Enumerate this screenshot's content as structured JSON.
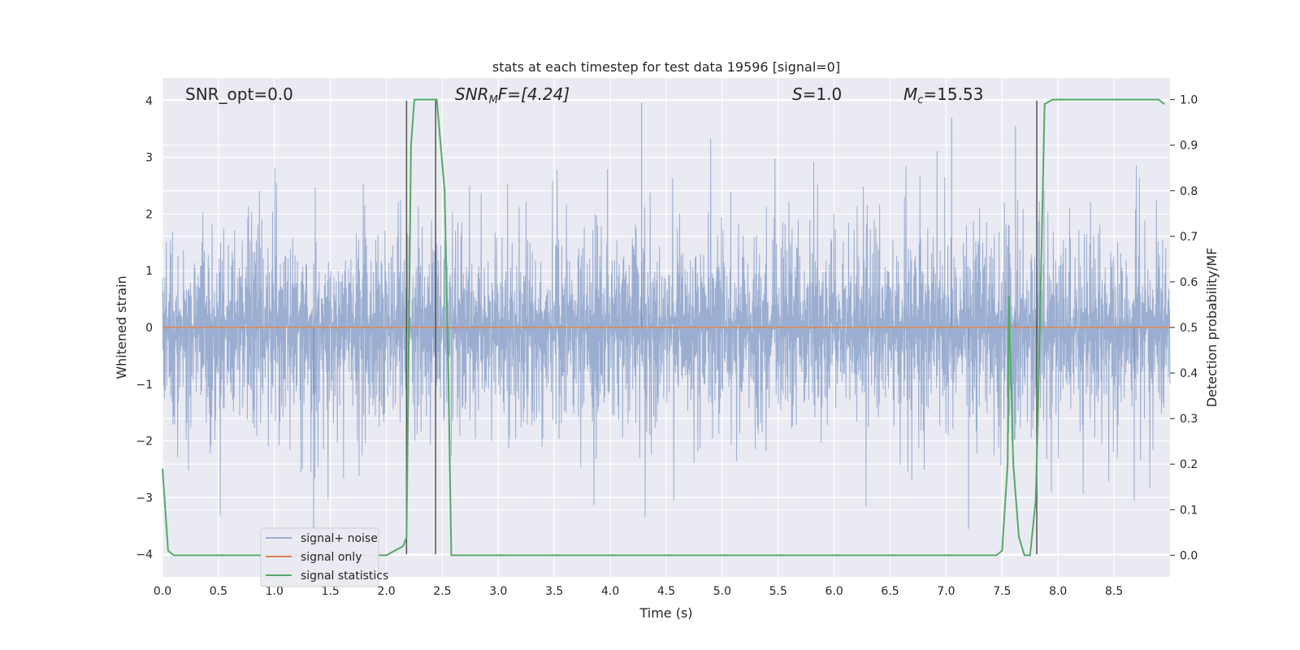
{
  "chart_data": {
    "type": "line",
    "title": "stats at each timestep for test data 19596 [signal=0]",
    "xlabel": "Time (s)",
    "ylabel": "Whitened strain",
    "y2label": "Detection probability/MF",
    "xlim": [
      0,
      9.0
    ],
    "ylim": [
      -4.4,
      4.4
    ],
    "y2lim": [
      -0.0475,
      1.0475
    ],
    "grid": true,
    "legend_position": "lower-left",
    "x_ticks": [
      "0.0",
      "0.5",
      "1.0",
      "1.5",
      "2.0",
      "2.5",
      "3.0",
      "3.5",
      "4.0",
      "4.5",
      "5.0",
      "5.5",
      "6.0",
      "6.5",
      "7.0",
      "7.5",
      "8.0",
      "8.5"
    ],
    "y_ticks": [
      "−4",
      "−3",
      "−2",
      "−1",
      "0",
      "1",
      "2",
      "3",
      "4"
    ],
    "y2_ticks": [
      "0.0",
      "0.1",
      "0.2",
      "0.3",
      "0.4",
      "0.5",
      "0.6",
      "0.7",
      "0.8",
      "0.9",
      "1.0"
    ],
    "annotations": {
      "snr_opt": "SNR_opt=0.0",
      "snr_mf_main": "SNR",
      "snr_mf_sub": "M",
      "snr_mf_rest": "F=[4.24]",
      "s_main": "S",
      "s_rest": "=1.0",
      "mc_main": "M",
      "mc_sub": "c",
      "mc_rest": "=15.53"
    },
    "series": [
      {
        "name": "signal+ noise",
        "color": "#4c72b0",
        "alpha": 0.5,
        "description_values": "whitened strain noise, roughly within ±2.8 with occasional spikes to ±4",
        "approx_amplitude": 1.6,
        "spikes": [
          [
            4.28,
            3.97
          ],
          [
            7.05,
            3.7
          ],
          [
            7.62,
            3.55
          ],
          [
            1.35,
            -3.55
          ],
          [
            7.2,
            -3.55
          ],
          [
            8.68,
            -3.05
          ]
        ]
      },
      {
        "name": "signal only",
        "color": "#dd8452",
        "values_constant": 0.0
      },
      {
        "name": "signal statistics",
        "color": "#55a868",
        "axis": "right",
        "x": [
          0.0,
          0.05,
          0.1,
          0.5,
          1.0,
          1.5,
          2.0,
          2.15,
          2.18,
          2.22,
          2.25,
          2.42,
          2.45,
          2.52,
          2.55,
          2.58,
          3.0,
          4.0,
          5.0,
          6.0,
          7.0,
          7.45,
          7.5,
          7.55,
          7.56,
          7.6,
          7.65,
          7.7,
          7.75,
          7.8,
          7.82,
          7.88,
          7.95,
          8.0,
          8.5,
          8.9,
          8.95
        ],
        "y": [
          0.19,
          0.01,
          0.0,
          0.0,
          0.0,
          0.0,
          0.0,
          0.02,
          0.04,
          0.9,
          1.0,
          1.0,
          1.0,
          0.8,
          0.45,
          0.0,
          0.0,
          0.0,
          0.0,
          0.0,
          0.0,
          0.0,
          0.01,
          0.2,
          0.57,
          0.2,
          0.04,
          0.0,
          0.0,
          0.12,
          0.3,
          0.99,
          1.0,
          1.0,
          1.0,
          1.0,
          0.99
        ]
      }
    ],
    "vertical_markers": [
      2.18,
      2.44,
      7.81
    ],
    "marker_y_range": [
      -4.0,
      4.0
    ]
  }
}
